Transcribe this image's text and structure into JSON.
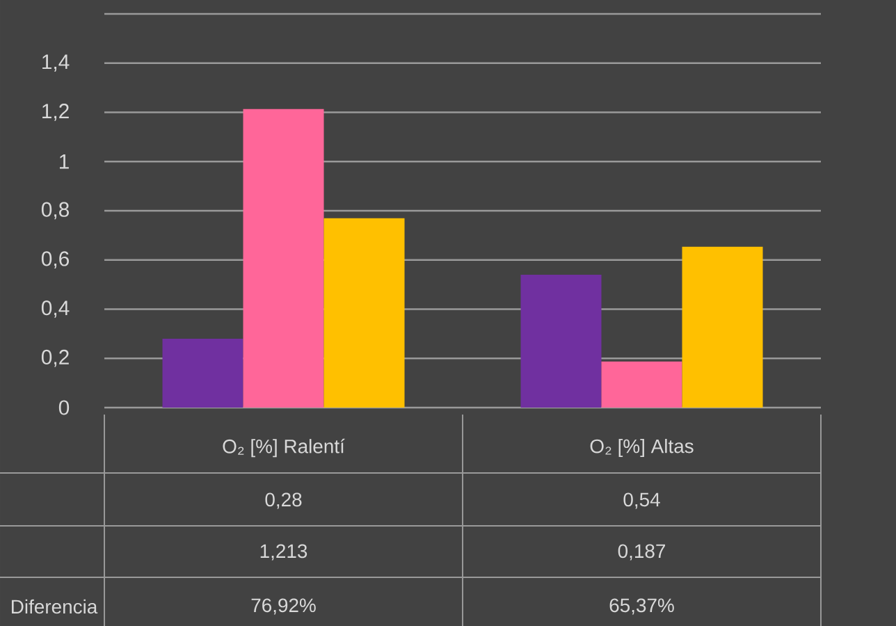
{
  "chart_data": {
    "type": "bar",
    "categories": [
      "O₂  [%] Ralentí",
      "O₂  [%] Altas"
    ],
    "series": [
      {
        "color": "#7030a0",
        "values": [
          0.28,
          0.54
        ],
        "value_labels": [
          "0,28",
          "0,54"
        ]
      },
      {
        "color": "#ff6699",
        "values": [
          1.213,
          0.187
        ],
        "value_labels": [
          "1,213",
          "0,187"
        ]
      },
      {
        "name": "Diferencia",
        "color": "#ffc000",
        "values": [
          0.7692,
          0.6537
        ],
        "value_labels": [
          "76,92%",
          "65,37%"
        ]
      }
    ],
    "ylim": [
      0,
      1.6
    ],
    "yticks": [
      0,
      {
        "value": 0.2,
        "label": "0,2"
      },
      {
        "value": 0.4,
        "label": "0,4"
      },
      {
        "value": 0.6,
        "label": "0,6"
      },
      {
        "value": 0.8,
        "label": "0,8"
      },
      1,
      {
        "value": 1.2,
        "label": "1,2"
      },
      {
        "value": 1.4,
        "label": "1,4"
      },
      {
        "value": 1.6,
        "label": null
      }
    ],
    "grid": "y"
  }
}
